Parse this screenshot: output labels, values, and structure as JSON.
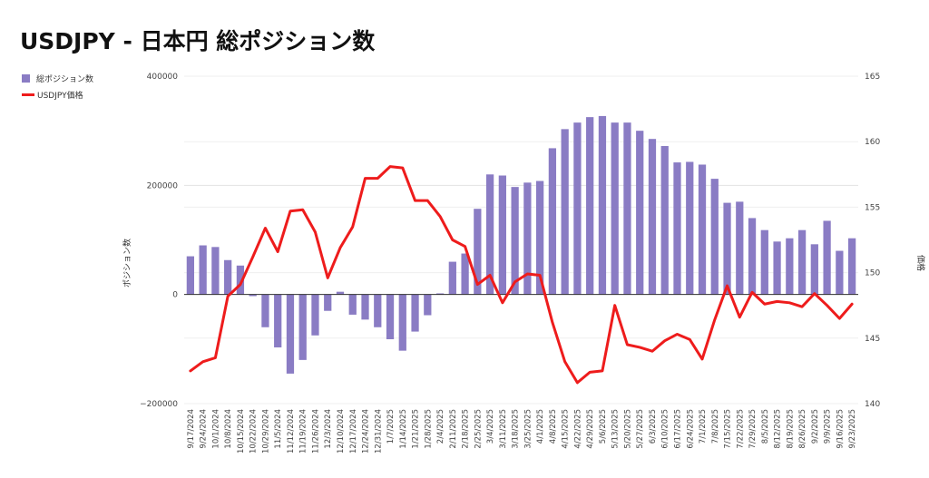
{
  "chart_data": {
    "type": "bar+line",
    "title": "USDJPY - 日本円 総ポジション数",
    "y_left_label": "ポジション数",
    "y_right_label": "価格",
    "y_left_range": [
      -200000,
      400000
    ],
    "y_left_ticks": [
      "400000",
      "200000",
      "0",
      "−200000"
    ],
    "y_left_tick_values": [
      400000,
      200000,
      0,
      -200000
    ],
    "y_right_range": [
      140,
      165
    ],
    "y_right_ticks": [
      "165",
      "160",
      "155",
      "150",
      "145",
      "140"
    ],
    "y_right_tick_values": [
      165,
      160,
      155,
      150,
      145,
      140
    ],
    "gridlines": true,
    "legend_position": "top-left",
    "colors": {
      "bar": "#8a7cc4",
      "line": "#ee1c1c",
      "grid": "#e2e2e2"
    },
    "x": [
      "9/17/2024",
      "9/24/2024",
      "10/1/2024",
      "10/8/2024",
      "10/15/2024",
      "10/22/2024",
      "10/29/2024",
      "11/5/2024",
      "11/12/2024",
      "11/19/2024",
      "11/26/2024",
      "12/3/2024",
      "12/10/2024",
      "12/17/2024",
      "12/24/2024",
      "12/31/2024",
      "1/7/2025",
      "1/14/2025",
      "1/21/2025",
      "1/28/2025",
      "2/4/2025",
      "2/11/2025",
      "2/18/2025",
      "2/25/2025",
      "3/4/2025",
      "3/11/2025",
      "3/18/2025",
      "3/25/2025",
      "4/1/2025",
      "4/8/2025",
      "4/15/2025",
      "4/22/2025",
      "4/29/2025",
      "5/6/2025",
      "5/13/2025",
      "5/20/2025",
      "5/27/2025",
      "6/3/2025",
      "6/10/2025",
      "6/17/2025",
      "6/24/2025",
      "7/1/2025",
      "7/8/2025",
      "7/15/2025",
      "7/22/2025",
      "7/29/2025",
      "8/5/2025",
      "8/12/2025",
      "8/19/2025",
      "8/26/2025",
      "9/2/2025",
      "9/9/2025",
      "9/16/2025",
      "9/23/2025"
    ],
    "x_tick_labels": [
      "9/17/2024",
      "9/24/2024",
      "10/1/2024",
      "10/8/2024",
      "10/15/2024",
      "10/22/2024",
      "10/29/2024",
      "11/5/2024",
      "11/12/2024",
      "11/19/2024",
      "11/26/2024",
      "12/3/2024",
      "12/10/2024",
      "12/17/2024",
      "12/24/2024",
      "12/31/2024",
      "1/7/2025",
      "1/14/2025",
      "1/21/2025",
      "1/28/2025",
      "2/4/2025",
      "2/11/2025",
      "2/18/2025",
      "2/25/2025",
      "3/4/2025",
      "3/11/2025",
      "3/18/2025",
      "3/25/2025",
      "4/1/2025",
      "4/8/2025",
      "4/15/2025",
      "4/22/2025",
      "4/29/2025",
      "5/6/2025",
      "5/13/2025",
      "5/20/2025",
      "5/27/2025",
      "6/3/2025",
      "6/10/2025",
      "6/17/2025",
      "6/24/2025",
      "7/1/2025",
      "7/8/2025",
      "7/15/2025",
      "7/22/2025",
      "7/29/2025",
      "8/5/2025",
      "8/12/2025",
      "8/19/2025",
      "8/26/2025",
      "9/2/2025",
      "9/9/2025",
      "9/16/2025",
      "9/23/2025"
    ],
    "series": [
      {
        "name": "総ポジション数",
        "type": "bar",
        "axis": "left",
        "values": [
          70000,
          90000,
          87000,
          63000,
          53000,
          -3000,
          -60000,
          -97000,
          -145000,
          -120000,
          -75000,
          -30000,
          5000,
          -37000,
          -46000,
          -60000,
          -82000,
          -103000,
          -68000,
          -38000,
          2000,
          60000,
          75000,
          157000,
          220000,
          218000,
          197000,
          205000,
          208000,
          268000,
          303000,
          315000,
          325000,
          327000,
          315000,
          315000,
          300000,
          285000,
          272000,
          242000,
          243000,
          238000,
          212000,
          168000,
          170000,
          140000,
          118000,
          97000,
          103000,
          118000,
          92000,
          135000,
          80000,
          103000
        ]
      },
      {
        "name": "USDJPY価格",
        "type": "line",
        "axis": "right",
        "values": [
          142.5,
          143.2,
          143.5,
          148.2,
          149.1,
          151.2,
          153.4,
          151.6,
          154.7,
          154.8,
          153.1,
          149.6,
          151.9,
          153.5,
          157.2,
          157.2,
          158.1,
          158.0,
          155.5,
          155.5,
          154.3,
          152.5,
          152.0,
          149.1,
          149.8,
          147.7,
          149.3,
          149.9,
          149.8,
          146.2,
          143.2,
          141.6,
          142.4,
          142.5,
          147.5,
          144.5,
          144.3,
          144.0,
          144.8,
          145.3,
          144.9,
          143.4,
          146.4,
          149.0,
          146.6,
          148.5,
          147.6,
          147.8,
          147.7,
          147.4,
          148.4,
          147.5,
          146.5,
          147.6
        ]
      }
    ]
  }
}
